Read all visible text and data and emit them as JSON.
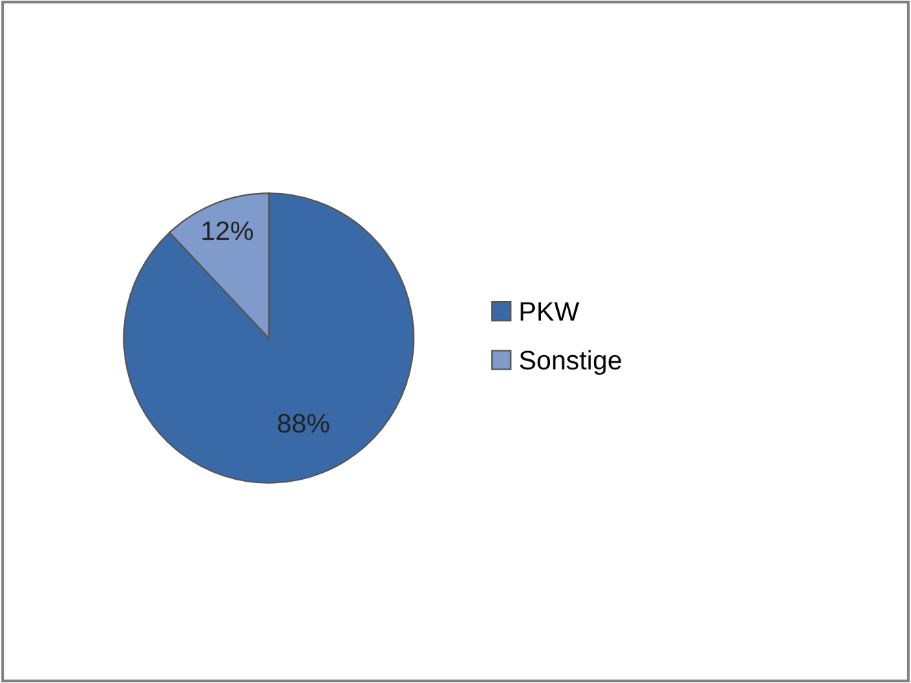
{
  "chart_data": {
    "type": "pie",
    "categories": [
      "PKW",
      "Sonstige"
    ],
    "values": [
      88,
      12
    ],
    "colors": [
      "#3a69a8",
      "#7f9bcc"
    ],
    "value_labels": [
      "88%",
      "12%"
    ],
    "legend": "right"
  }
}
